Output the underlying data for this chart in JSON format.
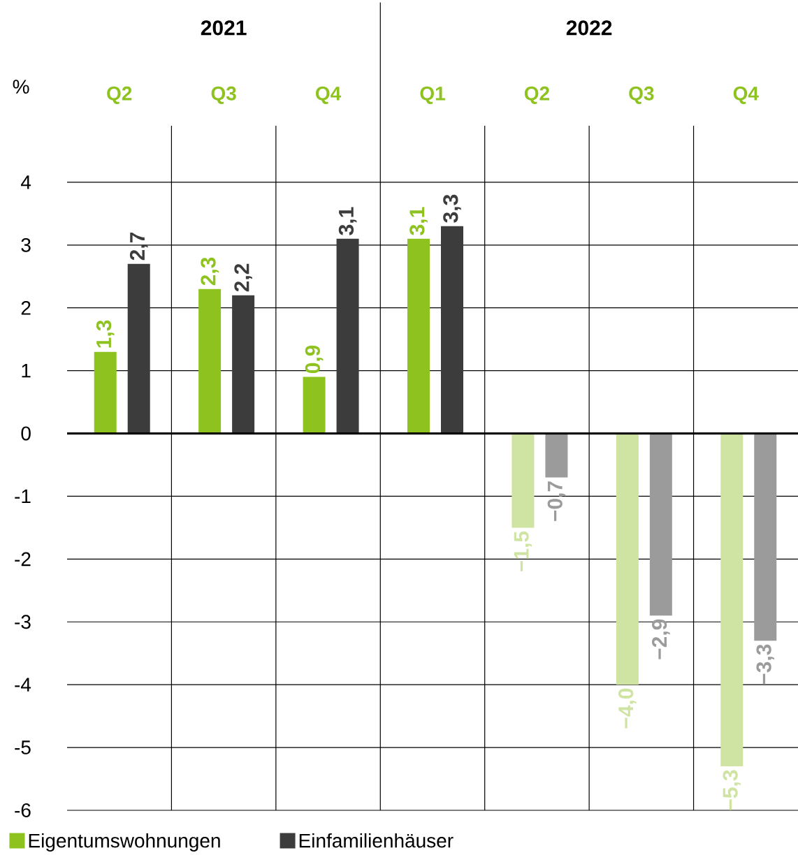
{
  "chart_data": {
    "type": "bar",
    "ylabel": "%",
    "categories": [
      "Q2",
      "Q3",
      "Q4",
      "Q1",
      "Q2",
      "Q3",
      "Q4"
    ],
    "annotations": [
      "2021",
      "2022"
    ],
    "series": [
      {
        "name": "Eigentumswohnungen",
        "color": "#8dc21f",
        "colors": [
          "#8dc21f",
          "#8dc21f",
          "#8dc21f",
          "#8dc21f",
          "#cfe3a2",
          "#cfe3a2",
          "#cfe3a2"
        ],
        "values": [
          1.3,
          2.3,
          0.9,
          3.1,
          -1.5,
          -4.0,
          -5.3
        ],
        "value_labels": [
          "1,3",
          "2,3",
          "0,9",
          "3,1",
          "−1,5",
          "−4,0",
          "−5,3"
        ]
      },
      {
        "name": "Einfamilienhäuser",
        "color": "#3c3c3c",
        "colors": [
          "#3c3c3c",
          "#3c3c3c",
          "#3c3c3c",
          "#3c3c3c",
          "#9b9b9b",
          "#9b9b9b",
          "#9b9b9b"
        ],
        "values": [
          2.7,
          2.2,
          3.1,
          3.3,
          -0.7,
          -2.9,
          -3.3
        ],
        "value_labels": [
          "2,7",
          "2,2",
          "3,1",
          "3,3",
          "−0,7",
          "−2,9",
          "−3,3"
        ]
      }
    ],
    "ylim": [
      -6,
      4.9
    ],
    "yticks": [
      -6,
      -5,
      -4,
      -3,
      -2,
      -1,
      0,
      1,
      2,
      3,
      4
    ],
    "grid": true,
    "legend": "bottom left"
  }
}
